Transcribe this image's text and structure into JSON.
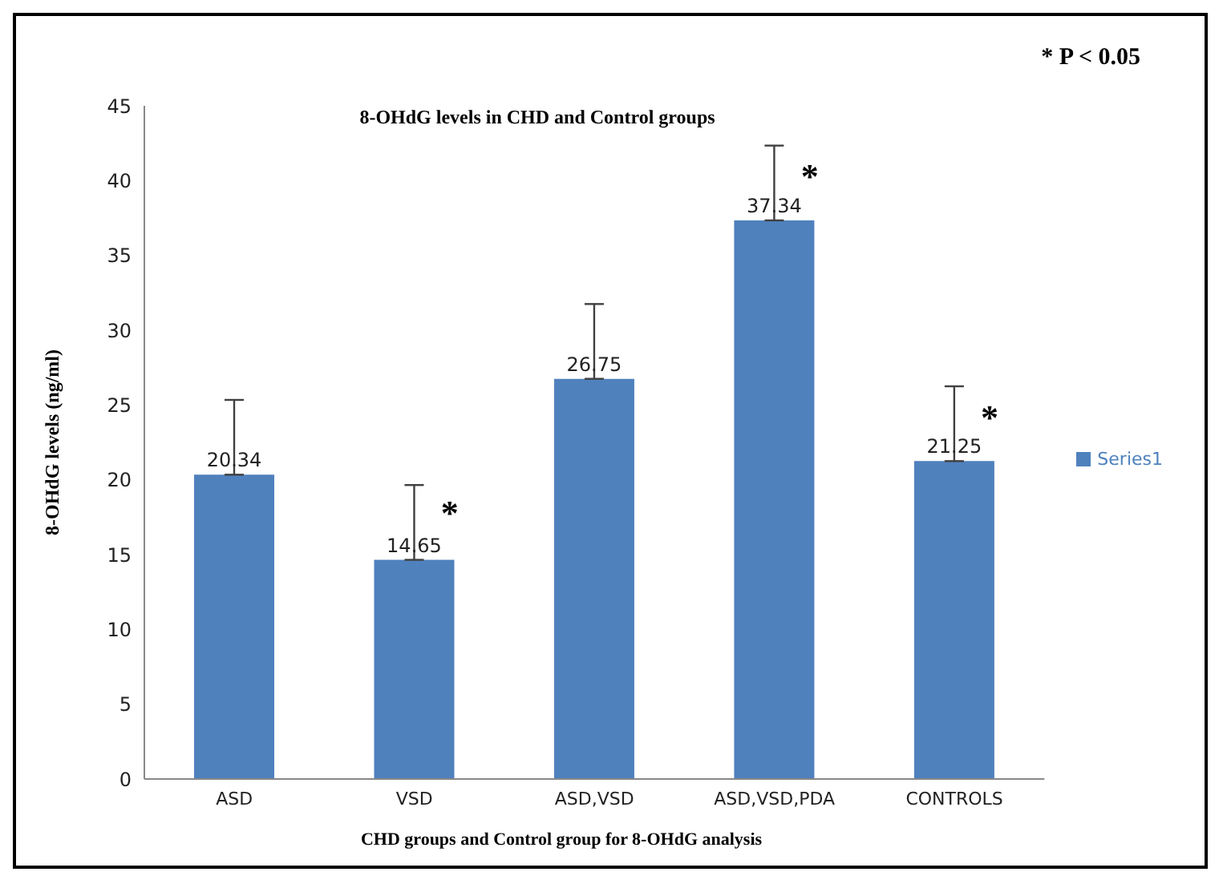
{
  "chart_data": {
    "type": "bar",
    "title": "8-OHdG levels in CHD and Control groups",
    "xlabel": "CHD groups and Control group for 8-OHdG analysis",
    "ylabel": "8-OHdG levels (ng/ml)",
    "categories": [
      "ASD",
      "VSD",
      "ASD,VSD",
      "ASD,VSD,PDA",
      "CONTROLS"
    ],
    "series": [
      {
        "name": "Series1",
        "color": "#4f81bd",
        "values": [
          20.34,
          14.65,
          26.75,
          37.34,
          21.25
        ],
        "errors": [
          [
            20.34,
            25.34
          ],
          [
            14.65,
            19.65
          ],
          [
            26.75,
            31.75
          ],
          [
            37.34,
            42.34
          ],
          [
            21.25,
            26.25
          ]
        ]
      }
    ],
    "ylim": [
      0,
      45
    ],
    "yticks": [
      0,
      5,
      10,
      15,
      20,
      25,
      30,
      35,
      40,
      45
    ],
    "grid": false,
    "legend": "right",
    "data_labels": true,
    "annotations": [
      "* P < 0.05",
      {
        "text": "*",
        "x": "VSD",
        "y": 17.8
      },
      {
        "text": "*",
        "x": "ASD,VSD,PDA",
        "y": 40.3
      },
      {
        "text": "*",
        "x": "CONTROLS",
        "y": 24.2
      }
    ]
  }
}
